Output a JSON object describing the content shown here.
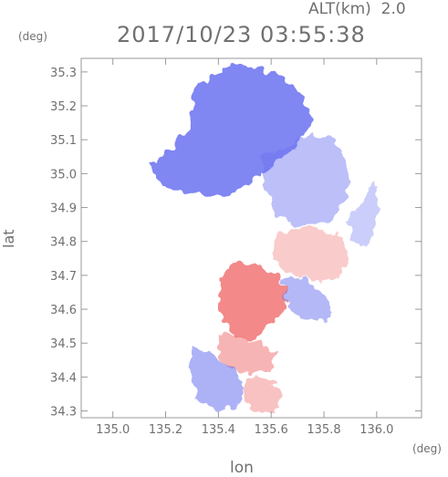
{
  "header": {
    "altitude_label": "ALT(km)",
    "altitude_value": "2.0",
    "timestamp": "2017/10/23 03:55:38"
  },
  "axes": {
    "lat_unit": "(deg)",
    "lon_unit": "(deg)",
    "ylabel": "lat",
    "xlabel": "lon"
  },
  "colors": {
    "approaching": "#6a72f0",
    "receding": "#f06a6a",
    "frame": "#9a9a9a",
    "text": "#707070"
  },
  "chart_data": {
    "type": "heatmap",
    "title": "2017/10/23 03:55:38",
    "xlabel": "lon",
    "ylabel": "lat",
    "xlim": [
      134.88,
      136.17
    ],
    "ylim": [
      34.28,
      35.34
    ],
    "xticks": [
      135.0,
      135.2,
      135.4,
      135.6,
      135.8,
      136.0
    ],
    "yticks": [
      34.3,
      34.4,
      34.5,
      34.6,
      34.7,
      34.8,
      34.9,
      35.0,
      35.1,
      35.2,
      35.3
    ],
    "grid": false,
    "regions": [
      {
        "kind": "approaching",
        "intensity": 0.85,
        "polygon": [
          [
            135.31,
            35.26
          ],
          [
            135.45,
            35.32
          ],
          [
            135.62,
            35.3
          ],
          [
            135.7,
            35.25
          ],
          [
            135.76,
            35.16
          ],
          [
            135.7,
            35.08
          ],
          [
            135.6,
            35.02
          ],
          [
            135.5,
            34.96
          ],
          [
            135.42,
            34.93
          ],
          [
            135.3,
            34.94
          ],
          [
            135.18,
            34.97
          ],
          [
            135.14,
            35.03
          ],
          [
            135.22,
            35.07
          ],
          [
            135.28,
            35.12
          ],
          [
            135.3,
            35.19
          ]
        ]
      },
      {
        "kind": "approaching",
        "intensity": 0.45,
        "polygon": [
          [
            135.56,
            35.05
          ],
          [
            135.66,
            35.08
          ],
          [
            135.76,
            35.12
          ],
          [
            135.84,
            35.1
          ],
          [
            135.9,
            35.02
          ],
          [
            135.88,
            34.92
          ],
          [
            135.82,
            34.86
          ],
          [
            135.7,
            34.84
          ],
          [
            135.62,
            34.88
          ],
          [
            135.58,
            34.95
          ]
        ]
      },
      {
        "kind": "receding",
        "intensity": 0.35,
        "polygon": [
          [
            135.62,
            34.82
          ],
          [
            135.74,
            34.84
          ],
          [
            135.86,
            34.82
          ],
          [
            135.9,
            34.76
          ],
          [
            135.86,
            34.7
          ],
          [
            135.78,
            34.68
          ],
          [
            135.68,
            34.7
          ],
          [
            135.6,
            34.75
          ]
        ]
      },
      {
        "kind": "approaching",
        "intensity": 0.35,
        "polygon": [
          [
            135.88,
            34.86
          ],
          [
            135.95,
            34.92
          ],
          [
            135.99,
            34.98
          ],
          [
            136.01,
            34.9
          ],
          [
            135.98,
            34.8
          ],
          [
            135.93,
            34.78
          ]
        ]
      },
      {
        "kind": "receding",
        "intensity": 0.8,
        "polygon": [
          [
            135.46,
            34.74
          ],
          [
            135.56,
            34.73
          ],
          [
            135.62,
            34.7
          ],
          [
            135.66,
            34.64
          ],
          [
            135.64,
            34.58
          ],
          [
            135.58,
            34.54
          ],
          [
            135.52,
            34.51
          ],
          [
            135.46,
            34.52
          ],
          [
            135.42,
            34.56
          ],
          [
            135.4,
            34.62
          ],
          [
            135.41,
            34.69
          ]
        ]
      },
      {
        "kind": "approaching",
        "intensity": 0.5,
        "polygon": [
          [
            135.64,
            34.68
          ],
          [
            135.72,
            34.69
          ],
          [
            135.79,
            34.65
          ],
          [
            135.84,
            34.6
          ],
          [
            135.8,
            34.56
          ],
          [
            135.72,
            34.57
          ],
          [
            135.66,
            34.61
          ]
        ]
      },
      {
        "kind": "receding",
        "intensity": 0.5,
        "polygon": [
          [
            135.4,
            34.53
          ],
          [
            135.48,
            34.52
          ],
          [
            135.56,
            34.5
          ],
          [
            135.62,
            34.47
          ],
          [
            135.6,
            34.42
          ],
          [
            135.52,
            34.41
          ],
          [
            135.44,
            34.42
          ],
          [
            135.4,
            34.47
          ]
        ]
      },
      {
        "kind": "approaching",
        "intensity": 0.55,
        "polygon": [
          [
            135.3,
            34.49
          ],
          [
            135.38,
            34.47
          ],
          [
            135.46,
            34.42
          ],
          [
            135.5,
            34.36
          ],
          [
            135.46,
            34.31
          ],
          [
            135.38,
            34.3
          ],
          [
            135.32,
            34.34
          ],
          [
            135.29,
            34.42
          ]
        ]
      },
      {
        "kind": "receding",
        "intensity": 0.4,
        "polygon": [
          [
            135.5,
            34.4
          ],
          [
            135.58,
            34.4
          ],
          [
            135.64,
            34.35
          ],
          [
            135.62,
            34.3
          ],
          [
            135.54,
            34.3
          ],
          [
            135.5,
            34.34
          ]
        ]
      }
    ],
    "blank_circle": {
      "center": [
        135.52,
        34.81
      ],
      "radius_deg": 0.055
    }
  }
}
